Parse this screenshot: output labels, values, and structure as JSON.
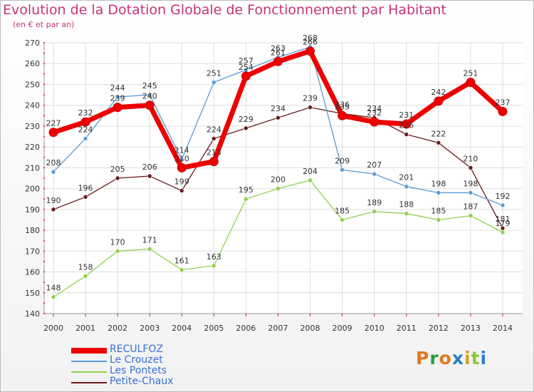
{
  "header": {
    "title": "Evolution de la Dotation Globale de Fonctionnement par Habitant",
    "subtitle": "(en € et par an)"
  },
  "brand": {
    "logo_text": "Proxiti",
    "logo_colors": [
      "#e07a1f",
      "#2b9c3e",
      "#e07a1f",
      "#2a7fd0",
      "#d6a21c",
      "#8cc63f",
      "#2a7fd0"
    ]
  },
  "chart_data": {
    "type": "line",
    "title": "Evolution de la Dotation Globale de Fonctionnement par Habitant",
    "subtitle": "(en € et par an)",
    "x": [
      "2000",
      "2001",
      "2002",
      "2003",
      "2004",
      "2005",
      "2006",
      "2007",
      "2008",
      "2009",
      "2010",
      "2011",
      "2012",
      "2013",
      "2014"
    ],
    "ylim": [
      140,
      270
    ],
    "yticks": [
      140,
      150,
      160,
      170,
      180,
      190,
      200,
      210,
      220,
      230,
      240,
      250,
      260,
      270
    ],
    "grid": true,
    "legend_position": "bottom-left",
    "series": [
      {
        "name": "RECULFOZ",
        "color": "#ee0000",
        "values": [
          227,
          232,
          239,
          240,
          210,
          213,
          254,
          261,
          266,
          235,
          232,
          231,
          242,
          251,
          237
        ],
        "labels": [
          "227",
          "232",
          "239",
          "240",
          "210",
          "213",
          "254",
          "261",
          "266",
          "235",
          "232",
          "231",
          "242",
          "251",
          "237"
        ]
      },
      {
        "name": "Le Crouzet",
        "color": "#5b9bd5",
        "values": [
          208,
          224,
          244,
          245,
          214,
          251,
          257,
          263,
          268,
          209,
          207,
          201,
          198,
          198,
          192
        ],
        "labels": [
          "208",
          "224",
          "244",
          "245",
          "214",
          "251",
          "257",
          "263",
          "268",
          "209",
          "207",
          "201",
          "198",
          "198",
          "192"
        ]
      },
      {
        "name": "Les Pontets",
        "color": "#8fd14f",
        "values": [
          148,
          158,
          170,
          171,
          161,
          163,
          195,
          200,
          204,
          185,
          189,
          188,
          185,
          187,
          179
        ],
        "labels": [
          "148",
          "158",
          "170",
          "171",
          "161",
          "163",
          "195",
          "200",
          "204",
          "185",
          "189",
          "188",
          "185",
          "187",
          "179"
        ]
      },
      {
        "name": "Petite-Chaux",
        "color": "#6b1a1a",
        "values": [
          190,
          196,
          205,
          206,
          199,
          224,
          229,
          234,
          239,
          236,
          234,
          226,
          222,
          210,
          181
        ],
        "labels": [
          "190",
          "196",
          "205",
          "206",
          "199",
          "224",
          "229",
          "234",
          "239",
          "236",
          "234",
          "226",
          "222",
          "210",
          "181"
        ]
      }
    ]
  }
}
